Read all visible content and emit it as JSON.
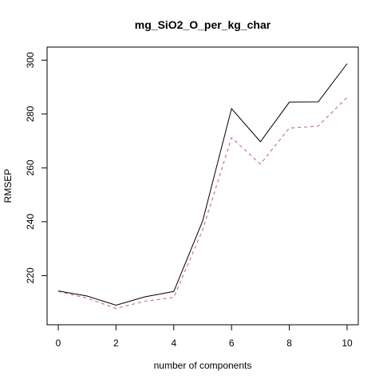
{
  "chart_data": {
    "type": "line",
    "title": "mg_SiO2_O_per_kg_char",
    "xlabel": "number of components",
    "ylabel": "RMSEP",
    "x": [
      0,
      1,
      2,
      3,
      4,
      5,
      6,
      7,
      8,
      9,
      10
    ],
    "xlim": [
      0,
      10
    ],
    "ylim": [
      205,
      301
    ],
    "xticks": [
      0,
      2,
      4,
      6,
      8,
      10
    ],
    "yticks": [
      220,
      240,
      260,
      280,
      300
    ],
    "grid": false,
    "series": [
      {
        "values": [
          214.3,
          212.4,
          209.0,
          212.1,
          214.1,
          240.3,
          282.0,
          269.7,
          284.4,
          284.5,
          298.7
        ],
        "color": "#000000",
        "style": "solid"
      },
      {
        "values": [
          214.1,
          211.6,
          207.8,
          210.5,
          211.9,
          237.0,
          271.2,
          261.4,
          274.8,
          275.5,
          286.2
        ],
        "color": "#DF536B",
        "style": "dashed"
      }
    ]
  }
}
